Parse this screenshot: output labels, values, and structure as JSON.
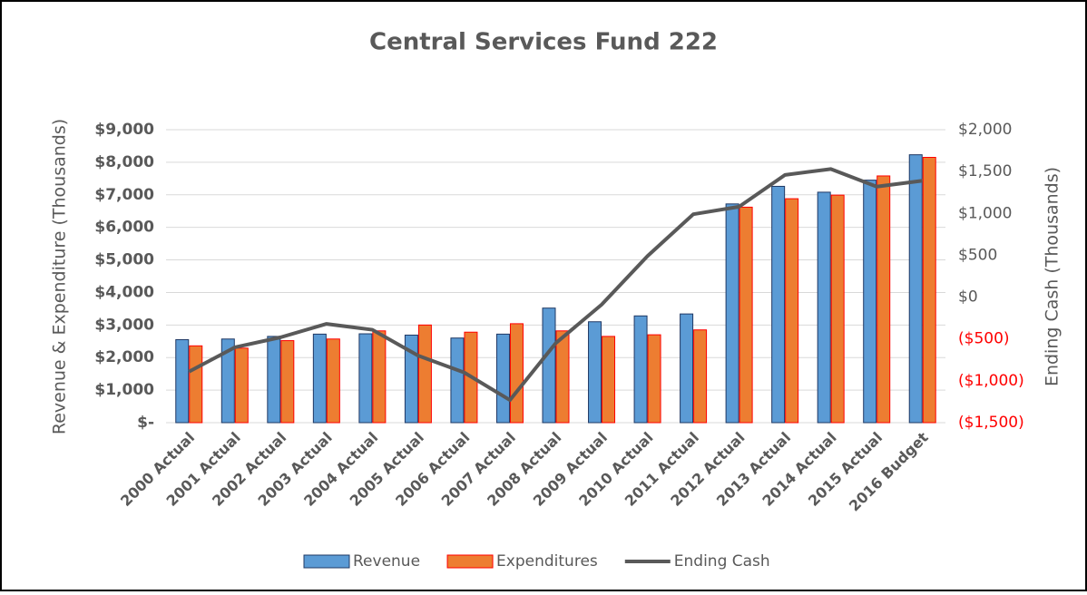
{
  "chart_data": {
    "type": "bar-line",
    "title": "Central Services Fund 222",
    "y_label": "Revenue & Expenditure (Thousands)",
    "y2_label": "Ending Cash (Thousands)",
    "categories": [
      "2000 Actual",
      "2001 Actual",
      "2002 Actual",
      "2003 Actual",
      "2004 Actual",
      "2005 Actual",
      "2006 Actual",
      "2007 Actual",
      "2008 Actual",
      "2009 Actual",
      "2010 Actual",
      "2011 Actual",
      "2012 Actual",
      "2013 Actual",
      "2014 Actual",
      "2015 Actual",
      "2016 Budget"
    ],
    "series": [
      {
        "name": "Revenue",
        "type": "bar",
        "color": "#5b9bd5",
        "edge": "#1f3864",
        "values": [
          2550,
          2570,
          2650,
          2720,
          2730,
          2690,
          2600,
          2720,
          3520,
          3100,
          3280,
          3340,
          6720,
          7260,
          7080,
          7450,
          8230
        ]
      },
      {
        "name": "Expenditures",
        "type": "bar",
        "color": "#ed7d31",
        "edge": "#ff0000",
        "values": [
          2360,
          2290,
          2520,
          2570,
          2820,
          3000,
          2780,
          3040,
          2820,
          2650,
          2700,
          2850,
          6620,
          6880,
          6990,
          7580,
          8150
        ]
      },
      {
        "name": "Ending Cash",
        "type": "line",
        "axis": "y2",
        "color": "#595959",
        "values": [
          -890,
          -600,
          -480,
          -320,
          -390,
          -700,
          -900,
          -1230,
          -550,
          -90,
          490,
          990,
          1080,
          1460,
          1530,
          1320,
          1390
        ]
      }
    ],
    "ylim": [
      0,
      9000
    ],
    "yticks": [
      {
        "value": 0,
        "label": "$-"
      },
      {
        "value": 1000,
        "label": "$1,000"
      },
      {
        "value": 2000,
        "label": "$2,000"
      },
      {
        "value": 3000,
        "label": "$3,000"
      },
      {
        "value": 4000,
        "label": "$4,000"
      },
      {
        "value": 5000,
        "label": "$5,000"
      },
      {
        "value": 6000,
        "label": "$6,000"
      },
      {
        "value": 7000,
        "label": "$7,000"
      },
      {
        "value": 8000,
        "label": "$8,000"
      },
      {
        "value": 9000,
        "label": "$9,000"
      }
    ],
    "y2lim": [
      -1500,
      2000
    ],
    "y2ticks": [
      {
        "value": -1500,
        "label": "($1,500)"
      },
      {
        "value": -1000,
        "label": "($1,000)"
      },
      {
        "value": -500,
        "label": "($500)"
      },
      {
        "value": 0,
        "label": "$0"
      },
      {
        "value": 500,
        "label": "$500"
      },
      {
        "value": 1000,
        "label": "$1,000"
      },
      {
        "value": 1500,
        "label": "$1,500"
      },
      {
        "value": 2000,
        "label": "$2,000"
      }
    ],
    "y2_negative_color": "#ff0000",
    "grid": true,
    "legend": "bottom"
  }
}
